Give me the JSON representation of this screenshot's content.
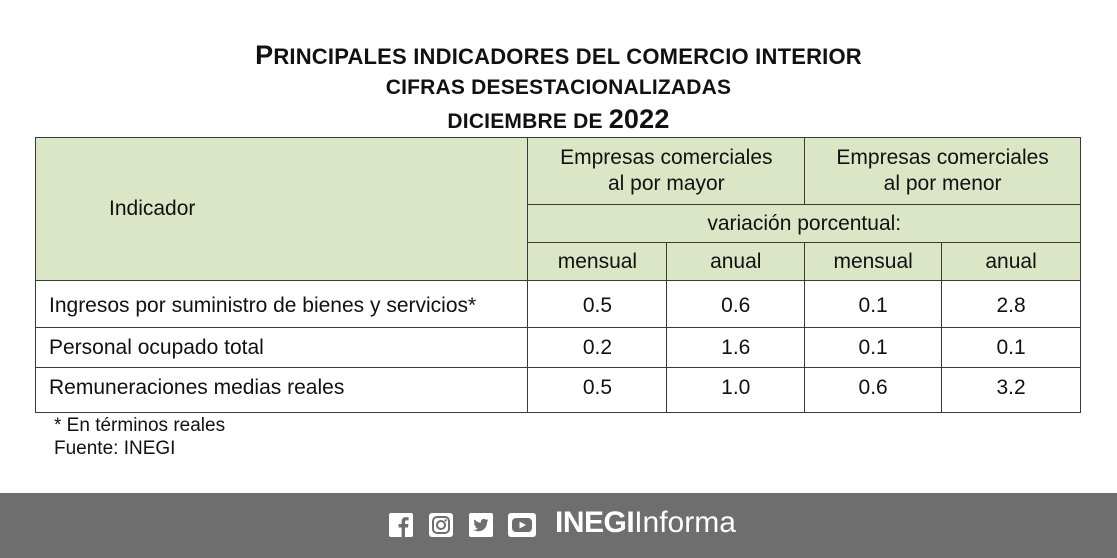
{
  "title": {
    "line1_cap": "P",
    "line1_rest": "RINCIPALES INDICADORES DEL COMERCIO INTERIOR",
    "line2": "CIFRAS DESESTACIONALIZADAS",
    "line3_prefix": "DICIEMBRE DE ",
    "line3_year": "2022"
  },
  "table": {
    "indicator_header": "Indicador",
    "group1_line1": "Empresas comerciales",
    "group1_line2": "al por mayor",
    "group2_line1": "Empresas comerciales",
    "group2_line2": "al por menor",
    "variation_header": "variación porcentual:",
    "sub_headers": [
      "mensual",
      "anual",
      "mensual",
      "anual"
    ],
    "rows": [
      {
        "label": "Ingresos por suministro de bienes y servicios*",
        "values": [
          "0.5",
          "0.6",
          "0.1",
          "2.8"
        ]
      },
      {
        "label": "Personal ocupado total",
        "values": [
          "0.2",
          "1.6",
          "0.1",
          "0.1"
        ]
      },
      {
        "label": "Remuneraciones medias reales",
        "values": [
          "0.5",
          "1.0",
          "0.6",
          "3.2"
        ]
      }
    ]
  },
  "notes": {
    "footnote": "*  En términos reales",
    "source": "Fuente: INEGI"
  },
  "footer": {
    "social_icons": [
      "facebook-icon",
      "instagram-icon",
      "twitter-icon",
      "youtube-icon"
    ],
    "brand_bold": "INEGI",
    "brand_light": "Informa"
  },
  "colors": {
    "header_bg": "#dbe6c7",
    "footer_bg": "#6e6e6e"
  }
}
